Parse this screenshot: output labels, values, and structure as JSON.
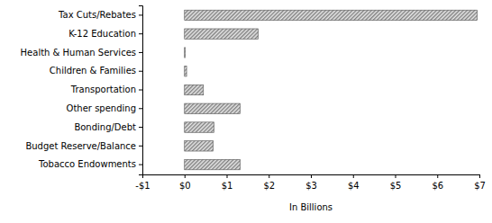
{
  "chart_data": {
    "type": "bar",
    "orientation": "horizontal",
    "categories": [
      "Tax Cuts/Rebates",
      "K-12 Education",
      "Health & Human Services",
      "Children & Families",
      "Transportation",
      "Other spending",
      "Bonding/Debt",
      "Budget Reserve/Balance",
      "Tobacco Endowments"
    ],
    "values": [
      6.95,
      1.75,
      0.02,
      0.05,
      0.45,
      1.32,
      0.7,
      0.68,
      1.32
    ],
    "color": "#808080",
    "xlim": [
      -1,
      7
    ],
    "xticks": [
      {
        "value": -1,
        "label": "-$1"
      },
      {
        "value": 0,
        "label": "$0"
      },
      {
        "value": 1,
        "label": "$1"
      },
      {
        "value": 2,
        "label": "$2"
      },
      {
        "value": 3,
        "label": "$3"
      },
      {
        "value": 4,
        "label": "$4"
      },
      {
        "value": 5,
        "label": "$5"
      },
      {
        "value": 6,
        "label": "$6"
      },
      {
        "value": 7,
        "label": "$7"
      }
    ],
    "x_label": "In Billions",
    "grid": false
  }
}
